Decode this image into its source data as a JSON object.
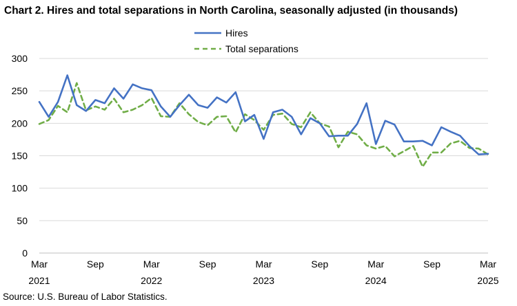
{
  "title": "Chart 2. Hires and total separations in North Carolina, seasonally adjusted (in thousands)",
  "source": "Source: U.S. Bureau of Labor Statistics.",
  "chart_data": {
    "type": "line",
    "title": "Chart 2. Hires and total separations in North Carolina, seasonally adjusted (in thousands)",
    "ylim": [
      0,
      300
    ],
    "yticks": [
      "0",
      "50",
      "100",
      "150",
      "200",
      "250",
      "300"
    ],
    "xticks": [
      {
        "label": "Mar",
        "year": "2021",
        "index": 0
      },
      {
        "label": "Sep",
        "year": "",
        "index": 6
      },
      {
        "label": "Mar",
        "year": "2022",
        "index": 12
      },
      {
        "label": "Sep",
        "year": "",
        "index": 18
      },
      {
        "label": "Mar",
        "year": "2023",
        "index": 24
      },
      {
        "label": "Sep",
        "year": "",
        "index": 30
      },
      {
        "label": "Mar",
        "year": "2024",
        "index": 36
      },
      {
        "label": "Sep",
        "year": "",
        "index": 42
      },
      {
        "label": "Mar",
        "year": "2025",
        "index": 48
      }
    ],
    "grid": true,
    "legend_position": "top-center",
    "series": [
      {
        "name": "Hires",
        "color": "#4472C4",
        "dash": "solid",
        "values": [
          233,
          210,
          233,
          274,
          228,
          219,
          236,
          231,
          254,
          238,
          260,
          254,
          251,
          226,
          210,
          228,
          244,
          228,
          224,
          240,
          232,
          248,
          203,
          213,
          176,
          217,
          221,
          210,
          183,
          208,
          200,
          180,
          181,
          181,
          199,
          231,
          168,
          204,
          198,
          172,
          172,
          173,
          166,
          194,
          187,
          181,
          165,
          152,
          153
        ]
      },
      {
        "name": "Total separations",
        "color": "#70AD47",
        "dash": "dashed",
        "values": [
          199,
          205,
          227,
          217,
          262,
          220,
          226,
          221,
          238,
          217,
          221,
          228,
          239,
          211,
          210,
          231,
          214,
          202,
          197,
          210,
          211,
          186,
          214,
          205,
          190,
          213,
          215,
          199,
          194,
          217,
          200,
          195,
          163,
          187,
          183,
          166,
          161,
          165,
          149,
          157,
          165,
          133,
          155,
          155,
          169,
          173,
          162,
          161,
          152
        ]
      }
    ]
  }
}
